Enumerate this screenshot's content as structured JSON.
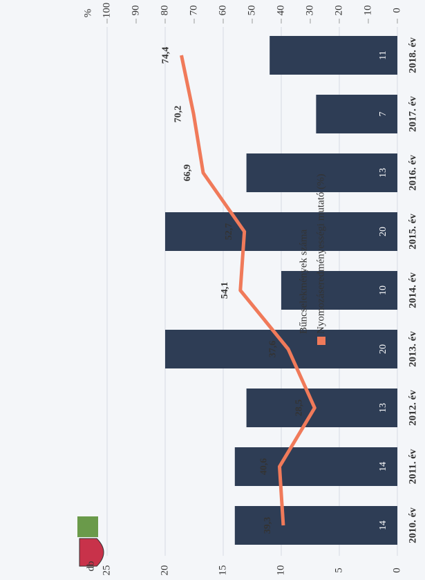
{
  "chart_data": {
    "type": "bar",
    "categories": [
      "2010. év",
      "2011. év",
      "2012. év",
      "2013. év",
      "2014. év",
      "2015. év",
      "2016. év",
      "2017. év",
      "2018. év"
    ],
    "series": [
      {
        "name": "Bűncselekmények száma",
        "type": "bar",
        "color": "#2e3d55",
        "values": [
          14,
          14,
          13,
          20,
          10,
          20,
          13,
          7,
          11
        ]
      },
      {
        "name": "Nyomozáseredményességi mutató (%)",
        "type": "line",
        "axis": "y2",
        "color": "#f07a5a",
        "values": [
          39.3,
          40.6,
          28.5,
          37.6,
          54.1,
          52.7,
          66.9,
          70.2,
          74.4
        ],
        "value_labels": [
          "39,3",
          "40,6",
          "28,5",
          "37,6",
          "54,1",
          "52,7",
          "66,9",
          "70,2",
          "74,4"
        ]
      }
    ],
    "ylabel": "db",
    "y2label": "%",
    "ylim": [
      0,
      25
    ],
    "yticks": [
      0,
      5,
      10,
      15,
      20,
      25
    ],
    "y2lim": [
      0,
      100
    ],
    "y2ticks": [
      0,
      10,
      20,
      30,
      40,
      50,
      60,
      70,
      80,
      90,
      100
    ],
    "grid": true
  }
}
